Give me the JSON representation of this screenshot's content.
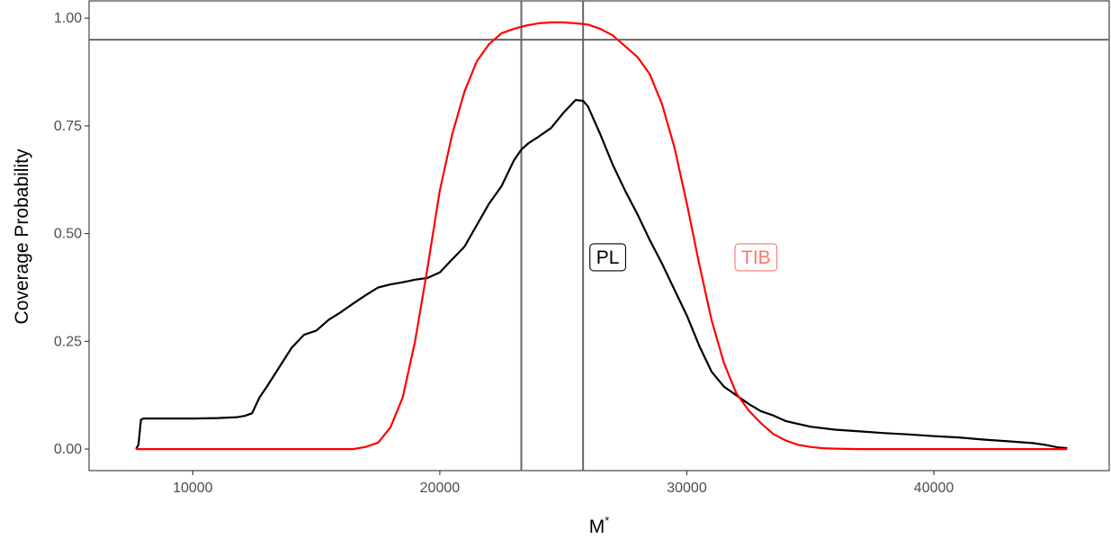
{
  "chart_data": {
    "type": "line",
    "title": "",
    "xlabel": "M",
    "xlabel_superscript": "*",
    "ylabel": "Coverage Probability",
    "xlim": [
      5800,
      47100
    ],
    "ylim": [
      -0.05,
      1.04
    ],
    "x_ticks": [
      10000,
      20000,
      30000,
      40000
    ],
    "x_tick_labels": [
      "10000",
      "20000",
      "30000",
      "40000"
    ],
    "y_ticks": [
      0,
      0.25,
      0.5,
      0.75,
      1.0
    ],
    "y_tick_labels": [
      "0.00",
      "0.25",
      "0.50",
      "0.75",
      "1.00"
    ],
    "grid": false,
    "hlines": [
      {
        "y": 0.95,
        "color": "#666666"
      }
    ],
    "vlines": [
      {
        "x": 23300,
        "color": "#666666"
      },
      {
        "x": 25800,
        "color": "#666666"
      }
    ],
    "series": [
      {
        "name": "PL",
        "color": "#000000",
        "x": [
          7700,
          7800,
          7900,
          8000,
          9000,
          10000,
          11000,
          11800,
          12100,
          12400,
          12700,
          13000,
          13500,
          14000,
          14500,
          15000,
          15500,
          16000,
          16500,
          17000,
          17500,
          18000,
          18500,
          19000,
          19500,
          20000,
          20500,
          21000,
          21500,
          22000,
          22500,
          23000,
          23300,
          23600,
          24000,
          24500,
          25000,
          25500,
          25800,
          26000,
          26500,
          27000,
          27500,
          28000,
          28500,
          29000,
          29500,
          30000,
          30500,
          31000,
          31500,
          32000,
          32500,
          33000,
          33500,
          34000,
          35000,
          36000,
          37000,
          38000,
          39000,
          40000,
          41000,
          42000,
          43000,
          44000,
          44500,
          45000,
          45400
        ],
        "y": [
          0.0,
          0.01,
          0.068,
          0.071,
          0.071,
          0.071,
          0.072,
          0.074,
          0.077,
          0.083,
          0.12,
          0.145,
          0.19,
          0.235,
          0.265,
          0.275,
          0.3,
          0.318,
          0.338,
          0.357,
          0.375,
          0.382,
          0.387,
          0.393,
          0.397,
          0.41,
          0.44,
          0.47,
          0.52,
          0.57,
          0.61,
          0.67,
          0.695,
          0.71,
          0.725,
          0.745,
          0.78,
          0.81,
          0.808,
          0.795,
          0.73,
          0.66,
          0.6,
          0.545,
          0.485,
          0.43,
          0.37,
          0.31,
          0.24,
          0.18,
          0.145,
          0.125,
          0.105,
          0.088,
          0.078,
          0.065,
          0.052,
          0.045,
          0.041,
          0.037,
          0.034,
          0.03,
          0.027,
          0.022,
          0.018,
          0.014,
          0.01,
          0.004,
          0.002
        ]
      },
      {
        "name": "TIB",
        "color": "#ff0000",
        "x": [
          7700,
          10000,
          15000,
          16000,
          16500,
          17000,
          17500,
          18000,
          18500,
          19000,
          19500,
          20000,
          20500,
          21000,
          21500,
          22000,
          22500,
          23000,
          23500,
          24000,
          24500,
          25000,
          25500,
          26000,
          26500,
          27000,
          27500,
          28000,
          28500,
          29000,
          29500,
          30000,
          30500,
          31000,
          31500,
          32000,
          32500,
          33000,
          33500,
          34000,
          34500,
          35000,
          35500,
          36000,
          37000,
          40000,
          43000,
          45400
        ],
        "y": [
          0.0,
          0.0,
          0.0,
          0.0,
          0.0,
          0.005,
          0.015,
          0.05,
          0.12,
          0.25,
          0.42,
          0.6,
          0.73,
          0.83,
          0.9,
          0.94,
          0.965,
          0.975,
          0.983,
          0.988,
          0.99,
          0.99,
          0.988,
          0.985,
          0.975,
          0.96,
          0.935,
          0.91,
          0.87,
          0.8,
          0.7,
          0.57,
          0.43,
          0.3,
          0.2,
          0.13,
          0.09,
          0.06,
          0.035,
          0.02,
          0.01,
          0.005,
          0.002,
          0.001,
          0.0,
          0.0,
          0.0,
          0.0
        ]
      }
    ],
    "annotations": [
      {
        "text": "PL",
        "x": 26800,
        "y": 0.445,
        "color": "#000000",
        "box": true
      },
      {
        "text": "TIB",
        "x": 32800,
        "y": 0.445,
        "color": "#f8766d",
        "box": true
      }
    ]
  }
}
